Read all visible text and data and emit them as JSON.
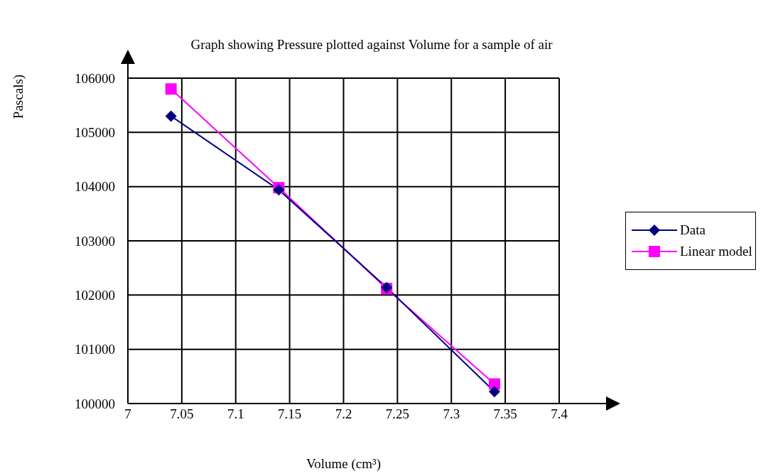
{
  "chart_data": {
    "type": "line",
    "title": "Graph showing Pressure plotted against Volume for a sample of air",
    "xlabel": "Volume (cm³)",
    "ylabel": "Pascals)",
    "x": [
      7.04,
      7.14,
      7.24,
      7.34
    ],
    "series": [
      {
        "name": "Data",
        "color": "#000080",
        "marker": "diamond",
        "values": [
          105300,
          103940,
          102140,
          100220
        ]
      },
      {
        "name": "Linear model",
        "color": "#ff00ff",
        "marker": "square",
        "values": [
          105800,
          103980,
          102120,
          100360
        ]
      }
    ],
    "xlim": [
      7,
      7.4
    ],
    "xticks": [
      7,
      7.05,
      7.1,
      7.15,
      7.2,
      7.25,
      7.3,
      7.35,
      7.4
    ],
    "ylim": [
      100000,
      106000
    ],
    "yticks": [
      100000,
      101000,
      102000,
      103000,
      104000,
      105000,
      106000
    ],
    "grid": true,
    "legend": "right"
  }
}
